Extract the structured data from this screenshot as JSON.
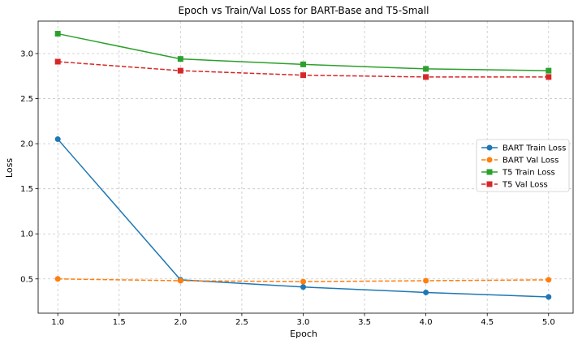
{
  "chart_data": {
    "type": "line",
    "title": "Epoch vs Train/Val Loss for BART-Base and T5-Small",
    "xlabel": "Epoch",
    "ylabel": "Loss",
    "x": [
      1,
      2,
      3,
      4,
      5
    ],
    "xlim": [
      0.84,
      5.2
    ],
    "ylim": [
      0.12,
      3.36
    ],
    "xticks": [
      "1.0",
      "1.5",
      "2.0",
      "2.5",
      "3.0",
      "3.5",
      "4.0",
      "4.5",
      "5.0"
    ],
    "yticks": [
      "0.5",
      "1.0",
      "1.5",
      "2.0",
      "2.5",
      "3.0"
    ],
    "grid": true,
    "legend_position": "center-right",
    "series": [
      {
        "name": "BART Train Loss",
        "values": [
          2.05,
          0.49,
          0.41,
          0.35,
          0.3
        ],
        "color": "#1f77b4",
        "linestyle": "solid",
        "marker": "circle"
      },
      {
        "name": "BART Val Loss",
        "values": [
          0.5,
          0.48,
          0.47,
          0.48,
          0.49
        ],
        "color": "#ff7f0e",
        "linestyle": "dashed",
        "marker": "circle"
      },
      {
        "name": "T5 Train Loss",
        "values": [
          3.22,
          2.94,
          2.88,
          2.83,
          2.81
        ],
        "color": "#2ca02c",
        "linestyle": "solid",
        "marker": "square"
      },
      {
        "name": "T5 Val Loss",
        "values": [
          2.91,
          2.81,
          2.76,
          2.74,
          2.74
        ],
        "color": "#d62728",
        "linestyle": "dashed",
        "marker": "square"
      }
    ]
  }
}
